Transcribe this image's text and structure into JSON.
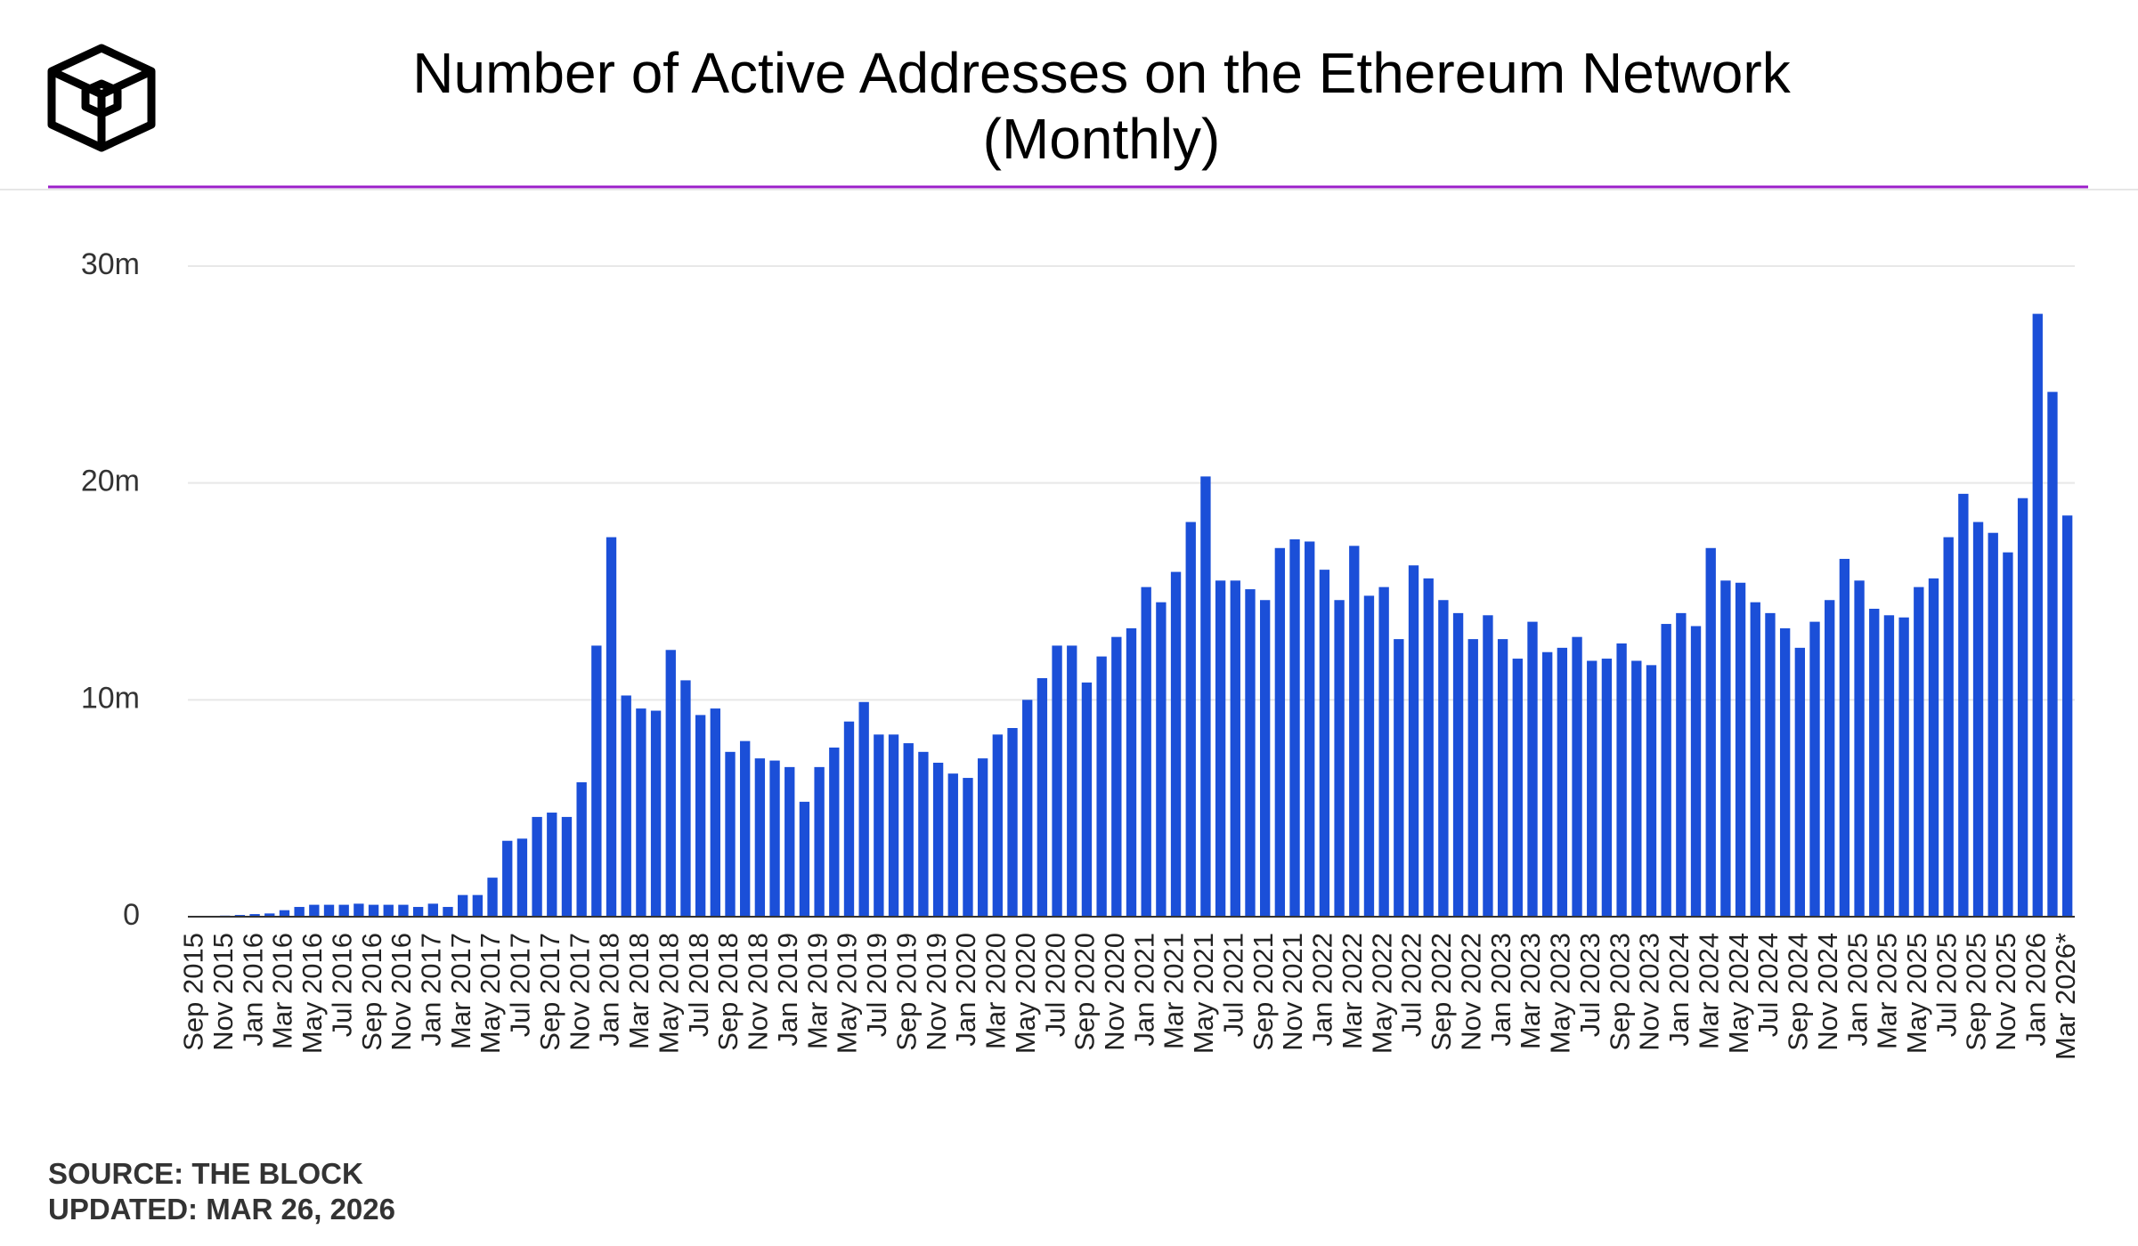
{
  "chart_data": {
    "type": "bar",
    "title": [
      "Number of Active Addresses on the Ethereum Network",
      "(Monthly)"
    ],
    "source": "SOURCE: THE BLOCK",
    "updated": "UPDATED: MAR 26, 2026",
    "color": "#1b4fd8",
    "grid": true,
    "ylim": [
      0,
      30
    ],
    "yticks": [
      0,
      {
        "value": 10,
        "label": "10m"
      },
      {
        "value": 20,
        "label": "20m"
      },
      {
        "value": 30,
        "label": "30m"
      }
    ],
    "categories": [
      "Sep 2015",
      null,
      "Nov 2015",
      null,
      "Jan 2016",
      null,
      "Mar 2016",
      null,
      "May 2016",
      null,
      "Jul 2016",
      null,
      "Sep 2016",
      null,
      "Nov 2016",
      null,
      "Jan 2017",
      null,
      "Mar 2017",
      null,
      "May 2017",
      null,
      "Jul 2017",
      null,
      "Sep 2017",
      null,
      "Nov 2017",
      null,
      "Jan 2018",
      null,
      "Mar 2018",
      null,
      "May 2018",
      null,
      "Jul 2018",
      null,
      "Sep 2018",
      null,
      "Nov 2018",
      null,
      "Jan 2019",
      null,
      "Mar 2019",
      null,
      "May 2019",
      null,
      "Jul 2019",
      null,
      "Sep 2019",
      null,
      "Nov 2019",
      null,
      "Jan 2020",
      null,
      "Mar 2020",
      null,
      "May 2020",
      null,
      "Jul 2020",
      null,
      "Sep 2020",
      null,
      "Nov 2020",
      null,
      "Jan 2021",
      null,
      "Mar 2021",
      null,
      "May 2021",
      null,
      "Jul 2021",
      null,
      "Sep 2021",
      null,
      "Nov 2021",
      null,
      "Jan 2022",
      null,
      "Mar 2022",
      null,
      "May 2022",
      null,
      "Jul 2022",
      null,
      "Sep 2022",
      null,
      "Nov 2022",
      null,
      "Jan 2023",
      null,
      "Mar 2023",
      null,
      "May 2023",
      null,
      "Jul 2023",
      null,
      "Sep 2023",
      null,
      "Nov 2023",
      null,
      "Jan 2024",
      null,
      "Mar 2024",
      null,
      "May 2024",
      null,
      "Jul 2024",
      null,
      "Sep 2024",
      null,
      "Nov 2024",
      null,
      "Jan 2025",
      null,
      "Mar 2025",
      null,
      "May 2025",
      null,
      "Jul 2025",
      null,
      "Sep 2025",
      null,
      "Nov 2025",
      null,
      "Jan 2026",
      null,
      "Mar 2026*"
    ],
    "values": [
      0.02,
      0.03,
      0.05,
      0.08,
      0.12,
      0.15,
      0.3,
      0.45,
      0.55,
      0.55,
      0.55,
      0.6,
      0.55,
      0.55,
      0.55,
      0.45,
      0.6,
      0.45,
      1.0,
      1.0,
      1.8,
      3.5,
      3.6,
      4.6,
      4.8,
      4.6,
      6.2,
      12.5,
      17.5,
      10.2,
      9.6,
      9.5,
      12.3,
      10.9,
      9.3,
      9.6,
      7.6,
      8.1,
      7.3,
      7.2,
      6.9,
      5.3,
      6.9,
      7.8,
      9.0,
      9.9,
      8.4,
      8.4,
      8.0,
      7.6,
      7.1,
      6.6,
      6.4,
      7.3,
      8.4,
      8.7,
      10.0,
      11.0,
      12.5,
      12.5,
      10.8,
      12.0,
      12.9,
      13.3,
      15.2,
      14.5,
      15.9,
      18.2,
      20.3,
      15.5,
      15.5,
      15.1,
      14.6,
      17.0,
      17.4,
      17.3,
      16.0,
      14.6,
      17.1,
      14.8,
      15.2,
      12.8,
      16.2,
      15.6,
      14.6,
      14.0,
      12.8,
      13.9,
      12.8,
      11.9,
      13.6,
      12.2,
      12.4,
      12.9,
      11.8,
      11.9,
      12.6,
      11.8,
      11.6,
      13.5,
      14.0,
      13.4,
      17.0,
      15.5,
      15.4,
      14.5,
      14.0,
      13.3,
      12.4,
      13.6,
      14.6,
      16.5,
      15.5,
      14.2,
      13.9,
      13.8,
      15.2,
      15.6,
      17.5,
      19.5,
      18.2,
      17.7,
      16.8,
      19.3,
      27.8,
      24.2,
      18.5
    ]
  }
}
